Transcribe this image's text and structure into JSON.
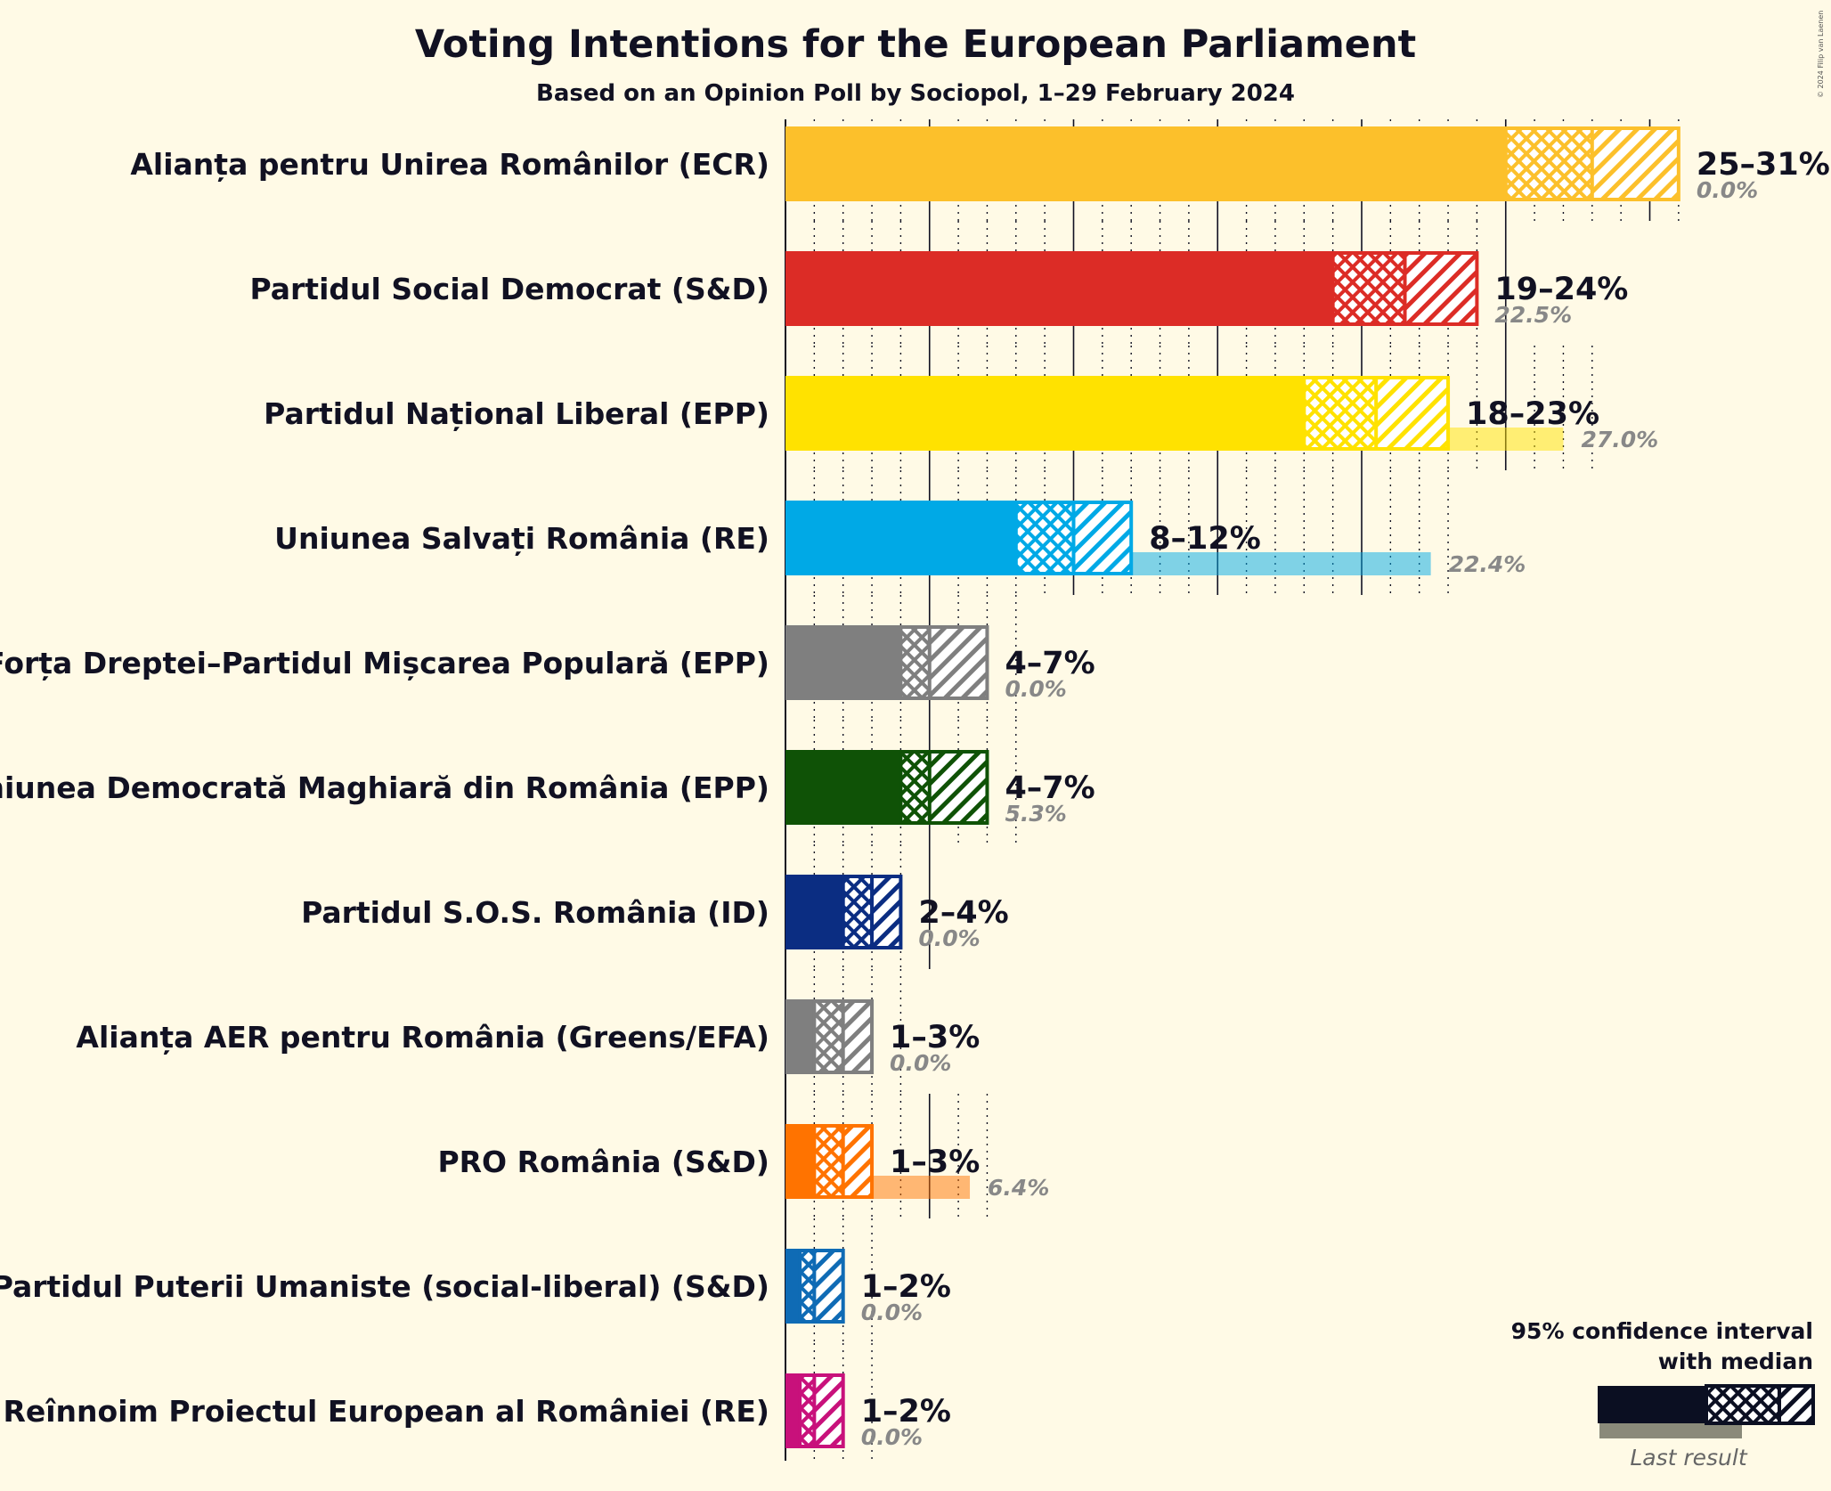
{
  "title": "Voting Intentions for the European Parliament",
  "subtitle": "Based on an Opinion Poll by Sociopol, 1–29 February 2024",
  "copyright": "© 2024 Filip van Laenen",
  "legend": {
    "line1": "95% confidence interval",
    "line2": "with median",
    "last_result": "Last result"
  },
  "chart_data": {
    "type": "bar",
    "orientation": "horizontal",
    "title": "Voting Intentions for the European Parliament",
    "subtitle": "Based on an Opinion Poll by Sociopol, 1–29 February 2024",
    "xlim": [
      0,
      31
    ],
    "parties": [
      {
        "name": "Alianța pentru Unirea Românilor (ECR)",
        "color": "#fcc02b",
        "low": 25,
        "median": 28,
        "high": 31,
        "range_label": "25–31%",
        "last": 0.0,
        "last_label": "0.0%"
      },
      {
        "name": "Partidul Social Democrat (S&D)",
        "color": "#dc2c26",
        "low": 19,
        "median": 21.5,
        "high": 24,
        "range_label": "19–24%",
        "last": 22.5,
        "last_label": "22.5%"
      },
      {
        "name": "Partidul Național Liberal (EPP)",
        "color": "#ffe200",
        "low": 18,
        "median": 20.5,
        "high": 23,
        "range_label": "18–23%",
        "last": 27.0,
        "last_label": "27.0%"
      },
      {
        "name": "Uniunea Salvați România (RE)",
        "color": "#00a9e6",
        "low": 8,
        "median": 10,
        "high": 12,
        "range_label": "8–12%",
        "last": 22.4,
        "last_label": "22.4%"
      },
      {
        "name": "Forța Dreptei–Partidul Mișcarea Populară (EPP)",
        "color": "#7f7f7f",
        "low": 4,
        "median": 5,
        "high": 7,
        "range_label": "4–7%",
        "last": 0.0,
        "last_label": "0.0%"
      },
      {
        "name": "Uniunea Democrată Maghiară din România (EPP)",
        "color": "#0f5206",
        "low": 4,
        "median": 5,
        "high": 7,
        "range_label": "4–7%",
        "last": 5.3,
        "last_label": "5.3%"
      },
      {
        "name": "Partidul S.O.S. România (ID)",
        "color": "#0b2d82",
        "low": 2,
        "median": 3,
        "high": 4,
        "range_label": "2–4%",
        "last": 0.0,
        "last_label": "0.0%"
      },
      {
        "name": "Alianța AER pentru România (Greens/EFA)",
        "color": "#7f7f7f",
        "low": 1,
        "median": 2,
        "high": 3,
        "range_label": "1–3%",
        "last": 0.0,
        "last_label": "0.0%"
      },
      {
        "name": "PRO România (S&D)",
        "color": "#ff7300",
        "low": 1,
        "median": 2,
        "high": 3,
        "range_label": "1–3%",
        "last": 6.4,
        "last_label": "6.4%"
      },
      {
        "name": "Partidul Puterii Umaniste (social-liberal) (S&D)",
        "color": "#0f6bb5",
        "low": 0.5,
        "median": 1,
        "high": 2,
        "range_label": "1–2%",
        "last": 0.0,
        "last_label": "0.0%"
      },
      {
        "name": "Reînnoim Proiectul European al României (RE)",
        "color": "#c8117b",
        "low": 0.5,
        "median": 1,
        "high": 2,
        "range_label": "1–2%",
        "last": 0.0,
        "last_label": "0.0%"
      }
    ]
  }
}
